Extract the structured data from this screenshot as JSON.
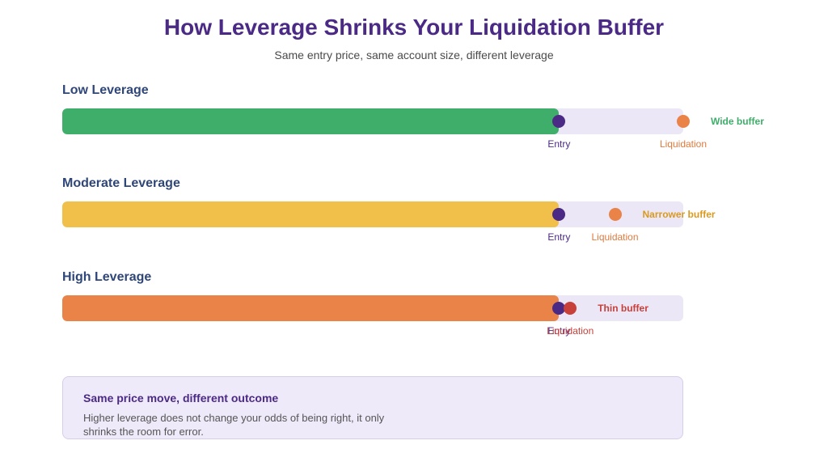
{
  "header": {
    "title": "How Leverage Shrinks Your Liquidation Buffer",
    "subtitle": "Same entry price, same account size, different leverage"
  },
  "rows": [
    {
      "label": "Low Leverage",
      "entry_label": "Entry",
      "liquidation_label": "Liquidation",
      "buffer_label": "Wide buffer",
      "fill_color": "#3fae6a",
      "buffer_color": "#3fae6a",
      "entry_fraction": 0.8,
      "liquidation_fraction": 1.0
    },
    {
      "label": "Moderate Leverage",
      "entry_label": "Entry",
      "liquidation_label": "Liquidation",
      "buffer_label": "Narrower buffer",
      "fill_color": "#f0c04a",
      "buffer_color": "#d99a1e",
      "entry_fraction": 0.8,
      "liquidation_fraction": 0.89
    },
    {
      "label": "High Leverage",
      "entry_label": "Entry",
      "liquidation_label": "Liquidation",
      "buffer_label": "Thin buffer",
      "fill_color": "#e98348",
      "buffer_color": "#c8403a",
      "entry_fraction": 0.8,
      "liquidation_fraction": 0.818
    }
  ],
  "colors": {
    "track": "#ece7f7",
    "entry_dot": "#4b2a86",
    "entry_text": "#4b2a86",
    "liquidation_dot_default": "#e98348",
    "liquidation_text_default": "#e07a3e",
    "liquidation_dot_high": "#c8403a",
    "liquidation_text_high": "#c8403a"
  },
  "note": {
    "title": "Same price move, different outcome",
    "body": "Higher leverage does not change your odds of being right, it only shrinks the room for error."
  }
}
